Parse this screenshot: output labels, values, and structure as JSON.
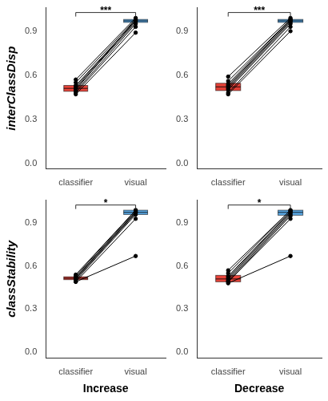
{
  "chart_data": [
    {
      "type": "box",
      "ylabel": "interClassDisp",
      "categories": [
        "classifier",
        "visual"
      ],
      "colors": [
        "#e8443a",
        "#5aa9e6"
      ],
      "annotation": "***",
      "marker": "circle",
      "ylim": [
        -0.04,
        1.06
      ],
      "yticks": [
        {
          "value": 0,
          "label": "0.0"
        },
        {
          "value": 0.3,
          "label": "0.3"
        },
        {
          "value": 0.6,
          "label": "0.6"
        },
        {
          "value": 0.9,
          "label": "0.9"
        }
      ],
      "boxes": [
        {
          "q1": 0.49,
          "median": 0.51,
          "q3": 0.53
        },
        {
          "q1": 0.96,
          "median": 0.97,
          "q3": 0.98
        }
      ],
      "pairs": [
        [
          0.57,
          0.99
        ],
        [
          0.55,
          0.98
        ],
        [
          0.53,
          0.97
        ],
        [
          0.52,
          0.97
        ],
        [
          0.51,
          0.96
        ],
        [
          0.5,
          0.98
        ],
        [
          0.49,
          0.95
        ],
        [
          0.48,
          0.93
        ],
        [
          0.47,
          0.89
        ]
      ]
    },
    {
      "type": "box",
      "categories": [
        "classifier",
        "visual"
      ],
      "colors": [
        "#e8443a",
        "#5aa9e6"
      ],
      "annotation": "***",
      "marker": "circle",
      "ylim": [
        -0.04,
        1.06
      ],
      "yticks": [
        {
          "value": 0,
          "label": "0.0"
        },
        {
          "value": 0.3,
          "label": "0.3"
        },
        {
          "value": 0.6,
          "label": "0.6"
        },
        {
          "value": 0.9,
          "label": "0.9"
        }
      ],
      "boxes": [
        {
          "q1": 0.495,
          "median": 0.52,
          "q3": 0.545
        },
        {
          "q1": 0.96,
          "median": 0.97,
          "q3": 0.98
        }
      ],
      "pairs": [
        [
          0.59,
          0.99
        ],
        [
          0.56,
          0.98
        ],
        [
          0.54,
          0.98
        ],
        [
          0.53,
          0.97
        ],
        [
          0.52,
          0.97
        ],
        [
          0.51,
          0.96
        ],
        [
          0.5,
          0.95
        ],
        [
          0.48,
          0.93
        ],
        [
          0.47,
          0.9
        ]
      ]
    },
    {
      "type": "box",
      "ylabel": "classStability",
      "xlabel": "Increase",
      "categories": [
        "classifier",
        "visual"
      ],
      "colors": [
        "#e8443a",
        "#5aa9e6"
      ],
      "annotation": "*",
      "marker": "circle",
      "ylim": [
        -0.04,
        1.06
      ],
      "yticks": [
        {
          "value": 0,
          "label": "0.0"
        },
        {
          "value": 0.3,
          "label": "0.3"
        },
        {
          "value": 0.6,
          "label": "0.6"
        },
        {
          "value": 0.9,
          "label": "0.9"
        }
      ],
      "boxes": [
        {
          "q1": 0.505,
          "median": 0.515,
          "q3": 0.525
        },
        {
          "q1": 0.96,
          "median": 0.975,
          "q3": 0.99
        }
      ],
      "pairs": [
        [
          0.54,
          0.99
        ],
        [
          0.53,
          0.99
        ],
        [
          0.52,
          0.98
        ],
        [
          0.52,
          0.98
        ],
        [
          0.51,
          0.97
        ],
        [
          0.51,
          0.97
        ],
        [
          0.5,
          0.96
        ],
        [
          0.49,
          0.93
        ],
        [
          0.49,
          0.67
        ]
      ]
    },
    {
      "type": "box",
      "xlabel": "Decrease",
      "categories": [
        "classifier",
        "visual"
      ],
      "colors": [
        "#e8443a",
        "#5aa9e6"
      ],
      "annotation": "*",
      "marker": "circle",
      "ylim": [
        -0.04,
        1.06
      ],
      "yticks": [
        {
          "value": 0,
          "label": "0.0"
        },
        {
          "value": 0.3,
          "label": "0.3"
        },
        {
          "value": 0.6,
          "label": "0.6"
        },
        {
          "value": 0.9,
          "label": "0.9"
        }
      ],
      "boxes": [
        {
          "q1": 0.49,
          "median": 0.51,
          "q3": 0.535
        },
        {
          "q1": 0.955,
          "median": 0.975,
          "q3": 0.99
        }
      ],
      "pairs": [
        [
          0.57,
          0.99
        ],
        [
          0.55,
          0.99
        ],
        [
          0.53,
          0.98
        ],
        [
          0.52,
          0.98
        ],
        [
          0.51,
          0.97
        ],
        [
          0.5,
          0.96
        ],
        [
          0.49,
          0.95
        ],
        [
          0.49,
          0.93
        ],
        [
          0.48,
          0.67
        ]
      ]
    }
  ]
}
